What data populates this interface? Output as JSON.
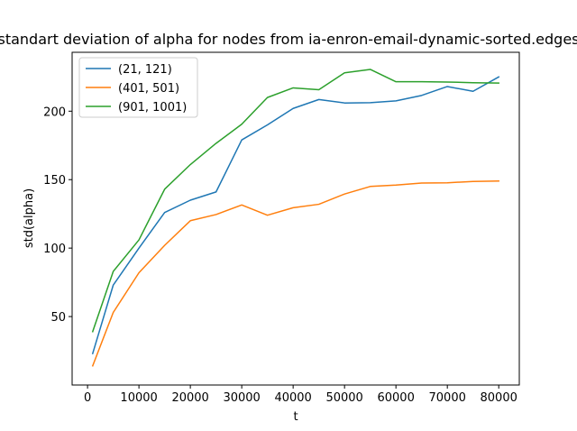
{
  "chart_data": {
    "type": "line",
    "title": "standart deviation of alpha for nodes from ia-enron-email-dynamic-sorted.edges",
    "xlabel": "t",
    "ylabel": "std(alpha)",
    "xlim": [
      -3000,
      84000
    ],
    "ylim": [
      0,
      243
    ],
    "xticks": [
      0,
      10000,
      20000,
      30000,
      40000,
      50000,
      60000,
      70000,
      80000
    ],
    "yticks": [
      50,
      100,
      150,
      200
    ],
    "grid": false,
    "legend_position": "upper left",
    "x": [
      1000,
      5000,
      10000,
      15000,
      20000,
      25000,
      30000,
      35000,
      40000,
      45000,
      50000,
      55000,
      60000,
      65000,
      70000,
      75000,
      80000
    ],
    "series": [
      {
        "name": "(21, 121)",
        "color": "#1f77b4",
        "values": [
          23,
          73,
          100,
          126,
          135,
          141,
          179,
          190,
          202,
          208.5,
          206,
          206.2,
          207.5,
          211.5,
          218,
          214.5,
          225
        ]
      },
      {
        "name": "(401, 501)",
        "color": "#ff7f0e",
        "values": [
          14,
          53,
          82,
          102,
          120,
          124.5,
          131.5,
          124,
          129.5,
          132,
          139.5,
          145,
          146,
          147.5,
          147.7,
          148.7,
          149
        ]
      },
      {
        "name": "(901, 1001)",
        "color": "#2ca02c",
        "values": [
          39,
          83,
          106,
          143,
          161,
          176.5,
          190.5,
          210,
          217,
          215.7,
          228,
          230.5,
          221.5,
          221.5,
          221.3,
          220.8,
          220.5
        ]
      }
    ]
  }
}
